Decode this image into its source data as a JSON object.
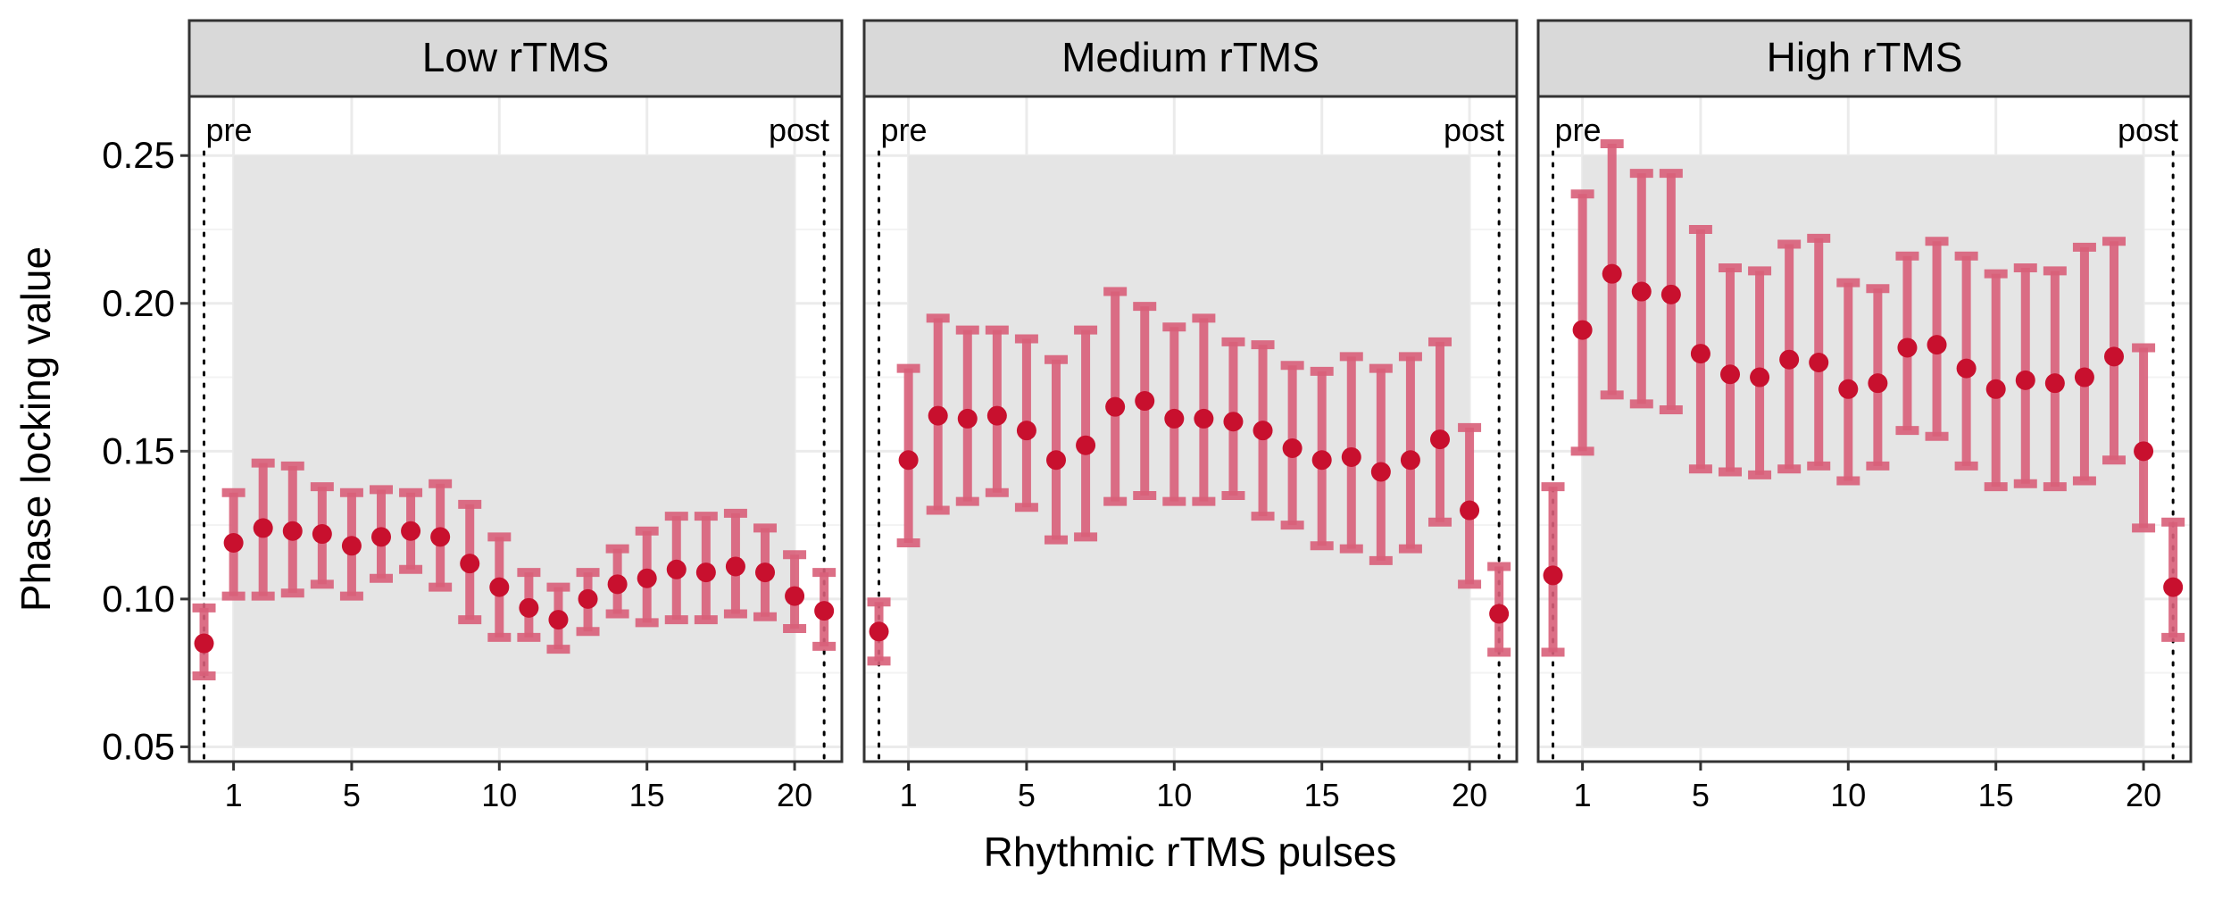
{
  "colors": {
    "point": "#c8102e",
    "errorbar": "#d9607a",
    "panel_shade": "#e5e5e5",
    "strip_bg": "#d9d9d9",
    "grid": "#ebebeb"
  },
  "chart_data": {
    "type": "scatter",
    "xlabel": "Rhythmic rTMS pulses",
    "ylabel": "Phase locking value",
    "xlim": [
      -0.5,
      21.6
    ],
    "ylim": [
      0.045,
      0.27
    ],
    "x_ticks": [
      1,
      5,
      10,
      15,
      20
    ],
    "y_ticks": [
      0.05,
      0.1,
      0.15,
      0.2,
      0.25
    ],
    "y_tick_labels": [
      "0.05",
      "0.10",
      "0.15",
      "0.20",
      "0.25"
    ],
    "shaded_x_range": [
      1,
      20
    ],
    "vlines": [
      {
        "x": 0,
        "label": "pre"
      },
      {
        "x": 21,
        "label": "post"
      }
    ],
    "grid": true,
    "panels": [
      {
        "title": "Low rTMS",
        "x": [
          0,
          1,
          2,
          3,
          4,
          5,
          6,
          7,
          8,
          9,
          10,
          11,
          12,
          13,
          14,
          15,
          16,
          17,
          18,
          19,
          20,
          21
        ],
        "y": [
          0.085,
          0.119,
          0.124,
          0.123,
          0.122,
          0.118,
          0.121,
          0.123,
          0.121,
          0.112,
          0.104,
          0.097,
          0.093,
          0.1,
          0.105,
          0.107,
          0.11,
          0.109,
          0.111,
          0.109,
          0.101,
          0.096
        ],
        "ymin": [
          0.074,
          0.101,
          0.101,
          0.102,
          0.105,
          0.101,
          0.107,
          0.11,
          0.104,
          0.093,
          0.087,
          0.087,
          0.083,
          0.089,
          0.095,
          0.092,
          0.093,
          0.093,
          0.095,
          0.094,
          0.09,
          0.084
        ],
        "ymax": [
          0.097,
          0.136,
          0.146,
          0.145,
          0.138,
          0.136,
          0.137,
          0.136,
          0.139,
          0.132,
          0.121,
          0.109,
          0.104,
          0.109,
          0.117,
          0.123,
          0.128,
          0.128,
          0.129,
          0.124,
          0.115,
          0.109
        ]
      },
      {
        "title": "Medium rTMS",
        "x": [
          0,
          1,
          2,
          3,
          4,
          5,
          6,
          7,
          8,
          9,
          10,
          11,
          12,
          13,
          14,
          15,
          16,
          17,
          18,
          19,
          20,
          21
        ],
        "y": [
          0.089,
          0.147,
          0.162,
          0.161,
          0.162,
          0.157,
          0.147,
          0.152,
          0.165,
          0.167,
          0.161,
          0.161,
          0.16,
          0.157,
          0.151,
          0.147,
          0.148,
          0.143,
          0.147,
          0.154,
          0.13,
          0.095
        ],
        "ymin": [
          0.079,
          0.119,
          0.13,
          0.133,
          0.136,
          0.131,
          0.12,
          0.121,
          0.133,
          0.135,
          0.133,
          0.133,
          0.135,
          0.128,
          0.125,
          0.118,
          0.117,
          0.113,
          0.117,
          0.126,
          0.105,
          0.082
        ],
        "ymax": [
          0.099,
          0.178,
          0.195,
          0.191,
          0.191,
          0.188,
          0.181,
          0.191,
          0.204,
          0.199,
          0.192,
          0.195,
          0.187,
          0.186,
          0.179,
          0.177,
          0.182,
          0.178,
          0.182,
          0.187,
          0.158,
          0.111
        ]
      },
      {
        "title": "High rTMS",
        "x": [
          0,
          1,
          2,
          3,
          4,
          5,
          6,
          7,
          8,
          9,
          10,
          11,
          12,
          13,
          14,
          15,
          16,
          17,
          18,
          19,
          20,
          21
        ],
        "y": [
          0.108,
          0.191,
          0.21,
          0.204,
          0.203,
          0.183,
          0.176,
          0.175,
          0.181,
          0.18,
          0.171,
          0.173,
          0.185,
          0.186,
          0.178,
          0.171,
          0.174,
          0.173,
          0.175,
          0.182,
          0.15,
          0.104
        ],
        "ymin": [
          0.082,
          0.15,
          0.169,
          0.166,
          0.164,
          0.144,
          0.143,
          0.142,
          0.144,
          0.145,
          0.14,
          0.145,
          0.157,
          0.155,
          0.145,
          0.138,
          0.139,
          0.138,
          0.14,
          0.147,
          0.124,
          0.087
        ],
        "ymax": [
          0.138,
          0.237,
          0.254,
          0.244,
          0.244,
          0.225,
          0.212,
          0.211,
          0.22,
          0.222,
          0.207,
          0.205,
          0.216,
          0.221,
          0.216,
          0.21,
          0.212,
          0.211,
          0.219,
          0.221,
          0.185,
          0.126
        ]
      }
    ]
  }
}
